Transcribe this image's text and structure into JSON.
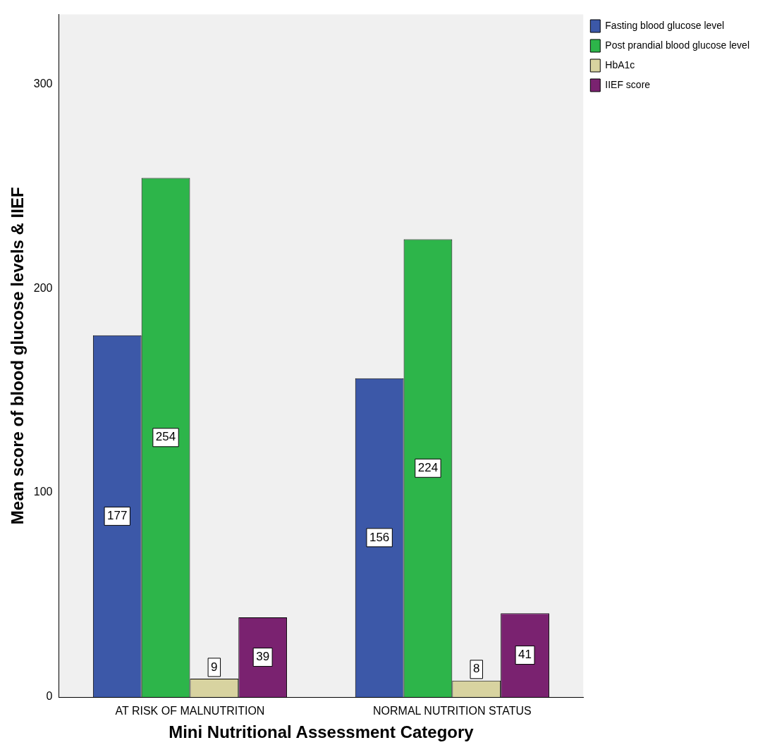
{
  "chart_data": {
    "type": "bar",
    "xlabel": "Mini Nutritional Assessment Category",
    "ylabel": "Mean score of blood glucose levels & IIEF",
    "categories": [
      "AT RISK OF MALNUTRITION",
      "NORMAL NUTRITION STATUS"
    ],
    "series": [
      {
        "name": "Fasting blood glucose level",
        "color": "#3c58a8",
        "values": [
          177,
          156
        ]
      },
      {
        "name": "Post prandial blood glucose level",
        "color": "#2db54a",
        "values": [
          254,
          224
        ]
      },
      {
        "name": "HbA1c",
        "color": "#d8d3a0",
        "values": [
          9,
          8
        ]
      },
      {
        "name": "IIEF score",
        "color": "#7a2270",
        "values": [
          39,
          41
        ]
      }
    ],
    "ylim": [
      0,
      334
    ],
    "yticks": [
      0,
      100,
      200,
      300
    ],
    "grid": false,
    "legend": "top right",
    "data_labels": true
  }
}
